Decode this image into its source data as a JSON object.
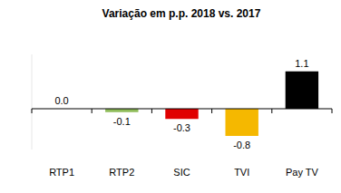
{
  "chart_data": {
    "type": "bar",
    "title": "Variação em p.p. 2018 vs. 2017",
    "categories": [
      "RTP1",
      "RTP2",
      "SIC",
      "TVI",
      "Pay TV"
    ],
    "values": [
      0.0,
      -0.1,
      -0.3,
      -0.8,
      1.1
    ],
    "value_labels": [
      "0.0",
      "-0.1",
      "-0.3",
      "-0.8",
      "1.1"
    ],
    "colors": [
      "#4472c4",
      "#8fbc5a",
      "#e00000",
      "#f5b800",
      "#000000"
    ],
    "ylim": [
      -1.2,
      1.6
    ],
    "yticks": [
      0
    ],
    "grid": false,
    "data_labels": true,
    "tick_labels": "x"
  }
}
